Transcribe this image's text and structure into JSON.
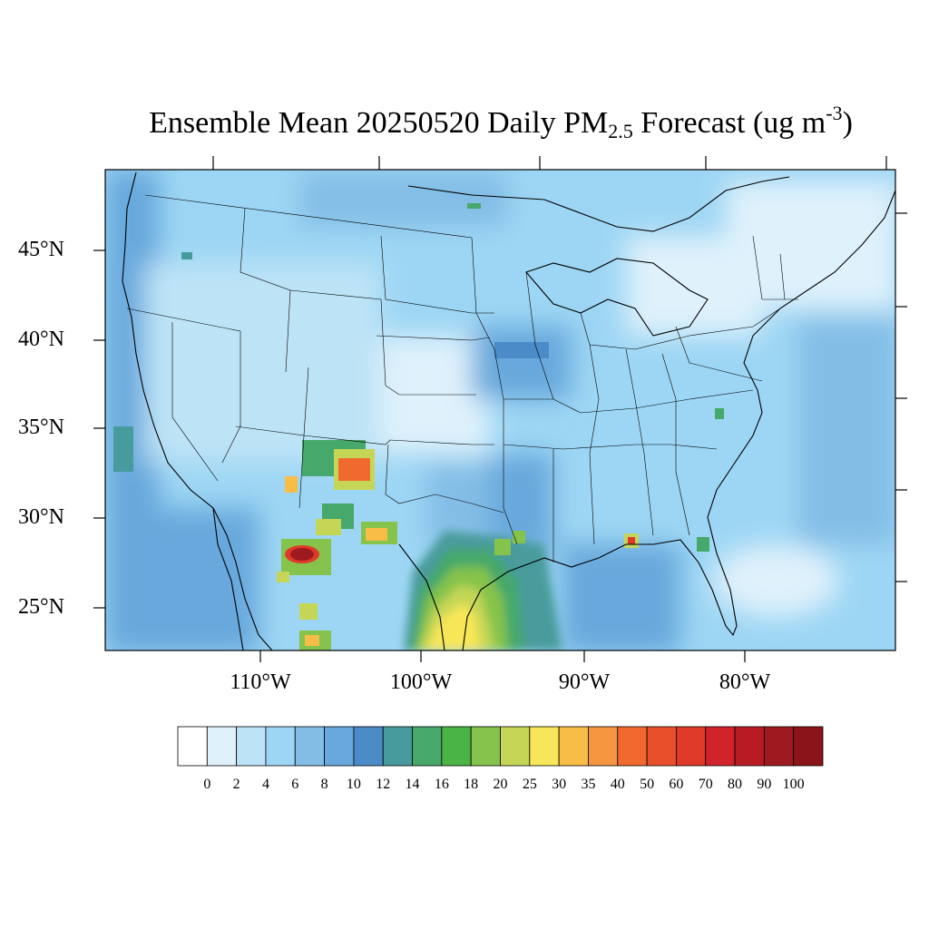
{
  "title": {
    "prefix": "Ensemble Mean 20250520 Daily PM",
    "subscript": "2.5",
    "middle": " Forecast (ug m",
    "superscript": "-3",
    "suffix": ")"
  },
  "map": {
    "lat_ticks": [
      "45°N",
      "40°N",
      "35°N",
      "30°N",
      "25°N"
    ],
    "lon_ticks": [
      "110°W",
      "100°W",
      "90°W",
      "80°W"
    ],
    "extent": {
      "lon": [
        -119.7,
        -70.8
      ],
      "lat": [
        22.8,
        49.5
      ]
    }
  },
  "colorbar": {
    "labels": [
      "0",
      "2",
      "4",
      "6",
      "8",
      "10",
      "12",
      "14",
      "16",
      "18",
      "20",
      "25",
      "30",
      "35",
      "40",
      "50",
      "60",
      "70",
      "80",
      "90",
      "100"
    ],
    "colors": [
      "#ffffff",
      "#dff1fb",
      "#bde3f6",
      "#9dd6f4",
      "#83bde6",
      "#68a8dc",
      "#4a8bc8",
      "#489b9c",
      "#46a86a",
      "#4bb447",
      "#86c34c",
      "#c5d657",
      "#f7e659",
      "#f7bd47",
      "#f59540",
      "#f06a2f",
      "#e8502c",
      "#df3a29",
      "#d0232b",
      "#b71b24",
      "#9e1a20",
      "#8a1418"
    ]
  }
}
